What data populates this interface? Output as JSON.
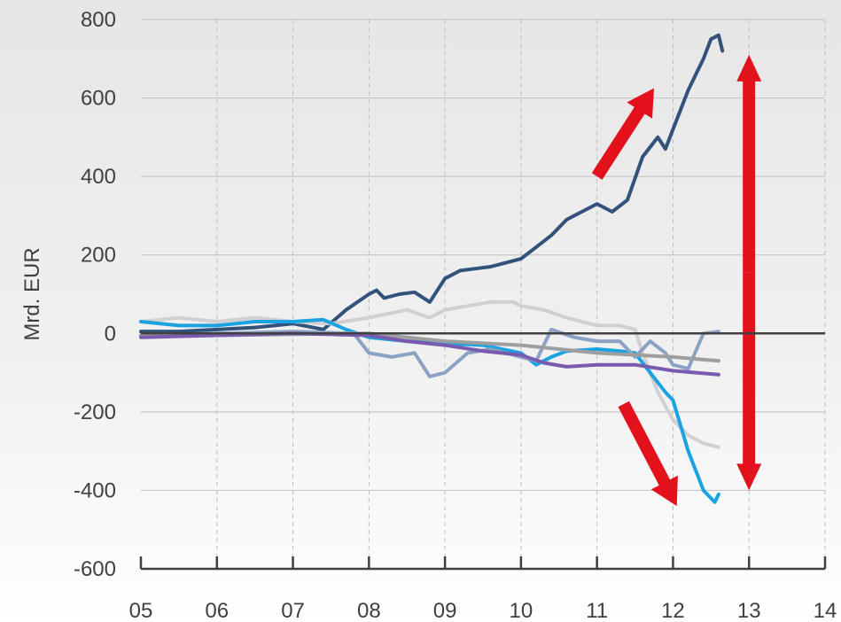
{
  "chart_data": {
    "type": "line",
    "ylabel": "Mrd. EUR",
    "xlabel": "",
    "title": "",
    "xlim": [
      2005,
      2014
    ],
    "ylim": [
      -600,
      800
    ],
    "x_ticks": [
      2005,
      2006,
      2007,
      2008,
      2009,
      2010,
      2011,
      2012,
      2013,
      2014
    ],
    "x_tick_labels": [
      "05",
      "06",
      "07",
      "08",
      "09",
      "10",
      "11",
      "12",
      "13",
      "14"
    ],
    "y_ticks": [
      -600,
      -400,
      -200,
      0,
      200,
      400,
      600,
      800
    ],
    "y_tick_labels": [
      "-600",
      "-400",
      "-200",
      "0",
      "200",
      "400",
      "600",
      "800"
    ],
    "grid": {
      "horizontal": true,
      "vertical_dashed": true
    },
    "legend": "none",
    "series": [
      {
        "color": "#32527b",
        "x": [
          2005.0,
          2005.5,
          2006.0,
          2006.5,
          2007.0,
          2007.4,
          2007.7,
          2008.0,
          2008.1,
          2008.2,
          2008.4,
          2008.6,
          2008.8,
          2009.0,
          2009.2,
          2009.4,
          2009.6,
          2009.8,
          2010.0,
          2010.2,
          2010.4,
          2010.6,
          2010.8,
          2011.0,
          2011.2,
          2011.4,
          2011.6,
          2011.8,
          2011.9,
          2012.0,
          2012.2,
          2012.4,
          2012.5,
          2012.6,
          2012.65
        ],
        "values": [
          5,
          5,
          10,
          15,
          25,
          10,
          60,
          100,
          110,
          90,
          100,
          105,
          80,
          140,
          160,
          165,
          170,
          180,
          190,
          220,
          250,
          290,
          310,
          330,
          310,
          340,
          450,
          500,
          470,
          520,
          620,
          700,
          750,
          760,
          720
        ]
      },
      {
        "color": "#d0d0d0",
        "x": [
          2005.0,
          2005.5,
          2006.0,
          2006.5,
          2007.0,
          2007.5,
          2008.0,
          2008.5,
          2008.8,
          2009.0,
          2009.3,
          2009.6,
          2009.9,
          2010.0,
          2010.3,
          2010.6,
          2011.0,
          2011.3,
          2011.5,
          2011.6,
          2011.8,
          2012.0,
          2012.2,
          2012.4,
          2012.6
        ],
        "values": [
          30,
          40,
          30,
          40,
          30,
          25,
          40,
          60,
          40,
          60,
          70,
          80,
          80,
          70,
          60,
          40,
          20,
          20,
          10,
          -50,
          -150,
          -220,
          -260,
          -280,
          -290
        ]
      },
      {
        "color": "#1aa3e0",
        "x": [
          2005.0,
          2005.5,
          2006.0,
          2006.5,
          2007.0,
          2007.4,
          2007.7,
          2008.0,
          2008.5,
          2009.0,
          2009.5,
          2010.0,
          2010.2,
          2010.4,
          2010.6,
          2011.0,
          2011.3,
          2011.5,
          2011.7,
          2011.9,
          2012.0,
          2012.2,
          2012.4,
          2012.55,
          2012.6
        ],
        "values": [
          30,
          20,
          20,
          30,
          30,
          35,
          10,
          -10,
          -20,
          -25,
          -30,
          -50,
          -80,
          -60,
          -45,
          -40,
          -45,
          -50,
          -100,
          -150,
          -170,
          -300,
          -400,
          -430,
          -410
        ]
      },
      {
        "color": "#8ca2c4",
        "x": [
          2005.0,
          2006.0,
          2007.0,
          2007.8,
          2008.0,
          2008.3,
          2008.6,
          2008.8,
          2009.0,
          2009.3,
          2009.6,
          2010.0,
          2010.2,
          2010.4,
          2010.7,
          2011.0,
          2011.3,
          2011.5,
          2011.7,
          2011.9,
          2012.0,
          2012.2,
          2012.4,
          2012.6
        ],
        "values": [
          -5,
          0,
          5,
          0,
          -50,
          -60,
          -50,
          -110,
          -100,
          -50,
          -40,
          -60,
          -70,
          10,
          -10,
          -20,
          -20,
          -60,
          -20,
          -50,
          -80,
          -90,
          0,
          5
        ]
      },
      {
        "color": "#9e9e9e",
        "x": [
          2005.0,
          2006.0,
          2007.0,
          2008.0,
          2008.5,
          2009.0,
          2009.5,
          2010.0,
          2010.5,
          2011.0,
          2011.5,
          2012.0,
          2012.3,
          2012.6
        ],
        "values": [
          -5,
          -5,
          -2,
          0,
          -10,
          -20,
          -25,
          -30,
          -40,
          -50,
          -55,
          -60,
          -65,
          -70
        ]
      },
      {
        "color": "#7a5aae",
        "x": [
          2005.0,
          2006.0,
          2007.0,
          2008.0,
          2008.5,
          2009.0,
          2009.5,
          2010.0,
          2010.3,
          2010.6,
          2011.0,
          2011.5,
          2012.0,
          2012.3,
          2012.6
        ],
        "values": [
          -10,
          -5,
          0,
          -5,
          -20,
          -30,
          -45,
          -55,
          -75,
          -85,
          -80,
          -80,
          -95,
          -100,
          -105
        ]
      }
    ],
    "annotations": {
      "arrow_color": "#e3111b",
      "arrows": [
        {
          "shape": "up-right",
          "from": [
            2011.0,
            400
          ],
          "to": [
            2011.75,
            625
          ]
        },
        {
          "shape": "down-right",
          "from": [
            2011.35,
            -180
          ],
          "to": [
            2012.05,
            -440
          ]
        },
        {
          "shape": "double-vertical",
          "at": 2013.0,
          "from": -400,
          "to": 710
        }
      ]
    }
  }
}
